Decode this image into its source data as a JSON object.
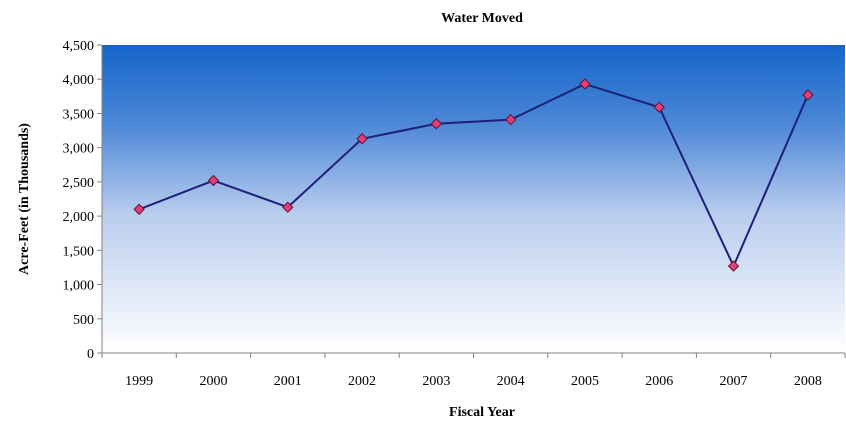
{
  "chart_data": {
    "type": "line",
    "title": "Water Moved",
    "xlabel": "Fiscal Year",
    "ylabel": "Acre-Feet (in Thousands)",
    "categories": [
      "1999",
      "2000",
      "2001",
      "2002",
      "2003",
      "2004",
      "2005",
      "2006",
      "2007",
      "2008"
    ],
    "series": [
      {
        "values": [
          2100,
          2520,
          2130,
          3130,
          3350,
          3410,
          3930,
          3590,
          1270,
          3770
        ],
        "color": "#1f1f7a",
        "marker_color": "#e0407a"
      }
    ],
    "ylim": [
      0,
      4500
    ],
    "yticks": [
      0,
      500,
      1000,
      1500,
      2000,
      2500,
      3000,
      3500,
      4000,
      4500
    ],
    "ytick_labels": [
      "0",
      "500",
      "1,000",
      "1,500",
      "2,000",
      "2,500",
      "3,000",
      "3,500",
      "4,000",
      "4,500"
    ],
    "plot_background": {
      "top_color": "#1565c9",
      "bottom_color": "#ffffff"
    },
    "grid": false,
    "legend": "none"
  }
}
